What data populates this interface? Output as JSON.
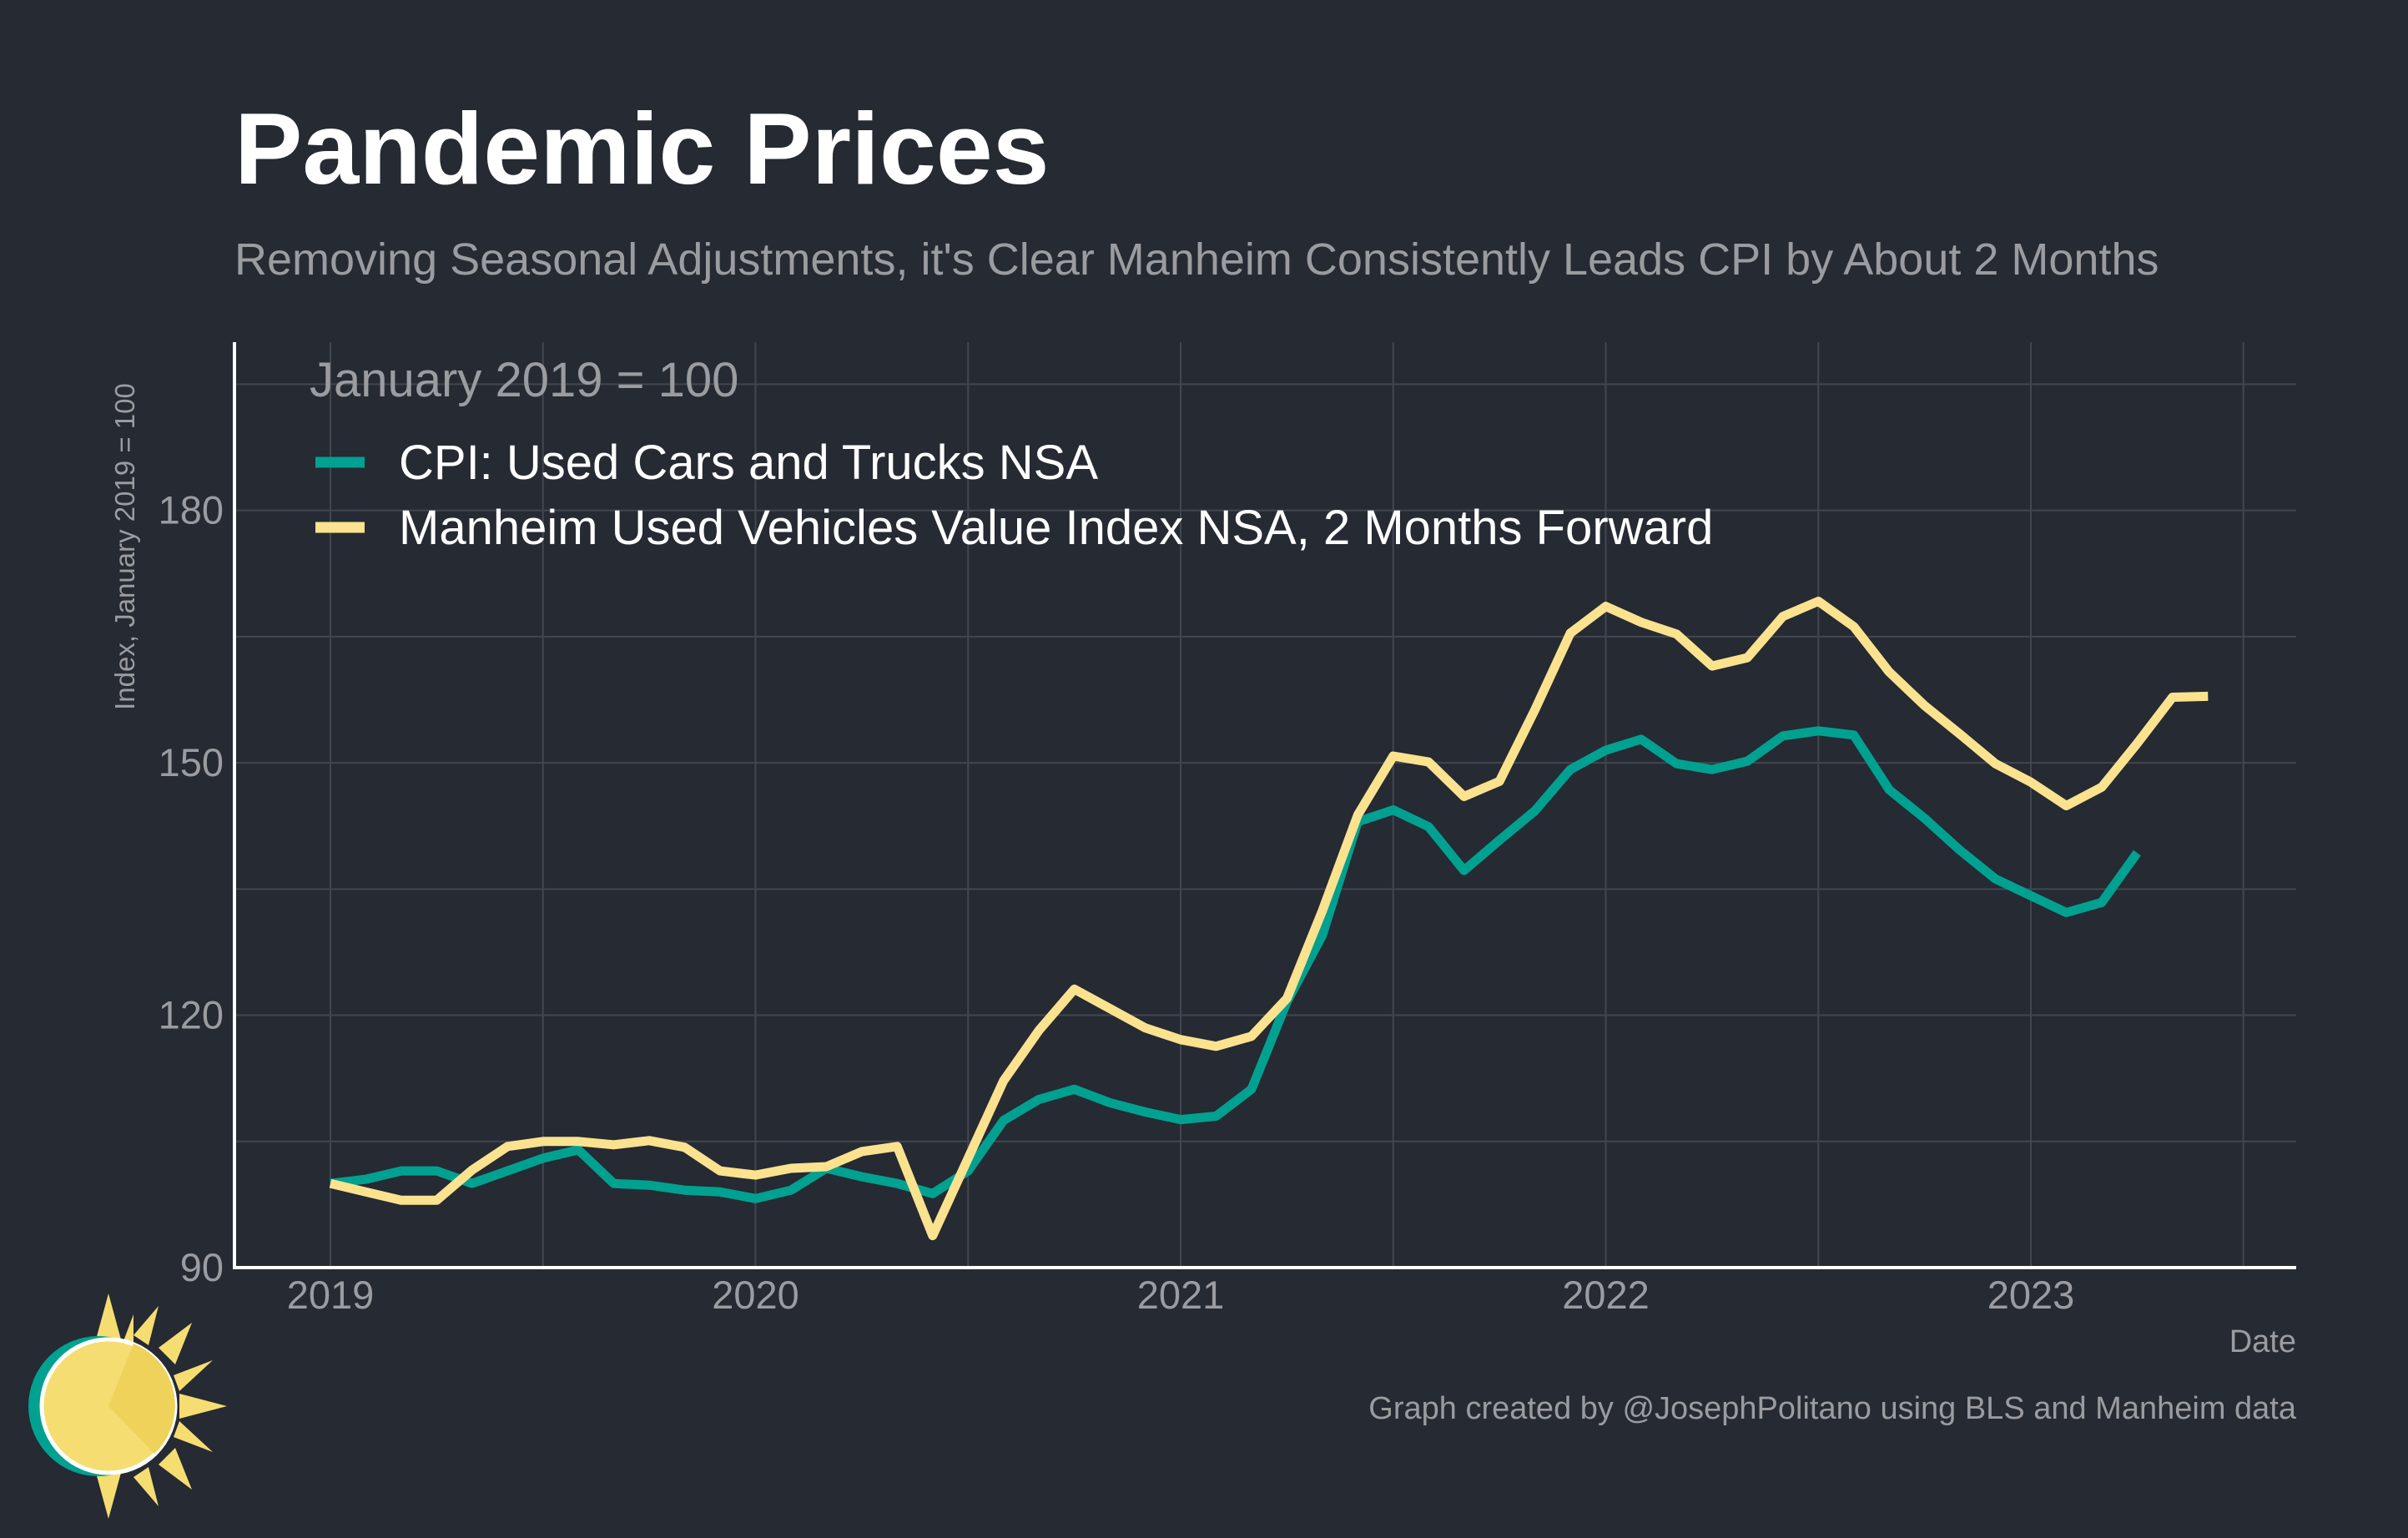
{
  "header": {
    "title": "Pandemic Prices",
    "subtitle": "Removing Seasonal Adjustments, it's Clear Manheim Consistently Leads CPI by About 2 Months"
  },
  "footer": {
    "credit": "Graph created by @JosephPolitano using BLS and Manheim data"
  },
  "logo": {
    "name": "sun-logo-icon",
    "colors": [
      "#f5dd72",
      "#00a191"
    ]
  },
  "chart_data": {
    "type": "line",
    "title": "Pandemic Prices",
    "subtitle": "Removing Seasonal Adjustments, it's Clear Manheim Consistently Leads CPI by About 2 Months",
    "xlabel": "Date",
    "ylabel": "Index, January 2019 = 100",
    "ylim": [
      90,
      200
    ],
    "yticks": [
      90,
      120,
      150,
      180
    ],
    "xticks": [
      "2019",
      "2020",
      "2021",
      "2022",
      "2023"
    ],
    "grid": true,
    "legend": {
      "title": "January 2019 = 100",
      "placement": "top-left"
    },
    "colors": {
      "background": "#252a33",
      "grid": "#41464f",
      "axis": "#ffffff",
      "text": "#9b9ca0"
    },
    "series": [
      {
        "name": "CPI: Used Cars and Trucks NSA",
        "color": "#00a191",
        "start": "2019-01",
        "values": [
          100,
          100.5,
          101.5,
          101.5,
          100,
          101.5,
          103,
          104,
          100,
          99.8,
          99.2,
          99,
          98.2,
          99.2,
          101.8,
          100.8,
          100,
          98.8,
          101.5,
          107.5,
          110,
          111.2,
          109.6,
          108.5,
          107.6,
          108,
          111.2,
          121.6,
          129.5,
          143,
          144.4,
          142.4,
          137.2,
          140.8,
          144.3,
          149.2,
          151.5,
          152.8,
          149.9,
          149.2,
          150.2,
          153.2,
          153.8,
          153.3,
          146.8,
          143.4,
          139.6,
          136.2,
          134.2,
          132.2,
          133.4,
          139.3
        ]
      },
      {
        "name": "Manheim Used Vehicles Value Index NSA, 2 Months Forward",
        "color": "#fbe28f",
        "start": "2019-01",
        "values": [
          100,
          99,
          98,
          98,
          101.6,
          104.4,
          105,
          105,
          104.6,
          105.1,
          104.3,
          101.5,
          101,
          101.8,
          102,
          103.8,
          104.4,
          93.8,
          103,
          112.2,
          118.2,
          123.1,
          120.8,
          118.5,
          117.1,
          116.3,
          117.5,
          122,
          132.4,
          143.8,
          150.8,
          150.1,
          146,
          147.8,
          156.3,
          165.4,
          168.6,
          166.7,
          165.3,
          161.5,
          162.5,
          167.4,
          169.2,
          166.2,
          160.8,
          156.8,
          153.4,
          149.9,
          147.7,
          144.9,
          147.1,
          152.3,
          157.8,
          157.9
        ]
      }
    ]
  }
}
